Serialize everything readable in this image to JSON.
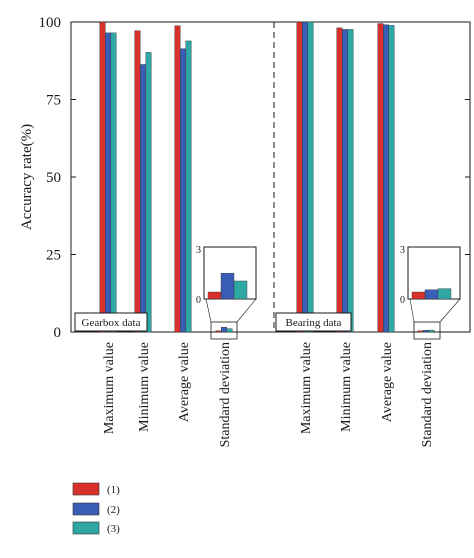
{
  "chart_data": {
    "type": "bar",
    "ylabel": "Accuracy rate(%)",
    "ylim": [
      0,
      100
    ],
    "yticks": [
      "0",
      "25",
      "50",
      "75",
      "100"
    ],
    "legend_placement": "bottom-left",
    "series": [
      {
        "name": "(1)",
        "color": "#d8312b"
      },
      {
        "name": "(2)",
        "color": "#3a5db5"
      },
      {
        "name": "(3)",
        "color": "#2fa7a4"
      }
    ],
    "panels": [
      {
        "label": "Gearbox data",
        "categories": [
          "Maximum value",
          "Minimum value",
          "Average value",
          "Standard deviation"
        ],
        "values": [
          [
            100,
            97.2,
            98.8,
            0.42
          ],
          [
            96.5,
            86.3,
            91.4,
            1.55
          ],
          [
            96.5,
            90.2,
            93.9,
            1.08
          ]
        ],
        "inset": {
          "category": "Standard deviation",
          "ylim": [
            0,
            3
          ],
          "yticks": [
            "0",
            "3"
          ]
        }
      },
      {
        "label": "Bearing data",
        "categories": [
          "Maximum value",
          "Minimum value",
          "Average value",
          "Standard deviation"
        ],
        "values": [
          [
            100,
            98.1,
            99.5,
            0.42
          ],
          [
            100,
            97.6,
            99.1,
            0.55
          ],
          [
            100,
            97.6,
            98.9,
            0.62
          ]
        ],
        "inset": {
          "category": "Standard deviation",
          "ylim": [
            0,
            3
          ],
          "yticks": [
            "0",
            "3"
          ]
        }
      }
    ]
  }
}
